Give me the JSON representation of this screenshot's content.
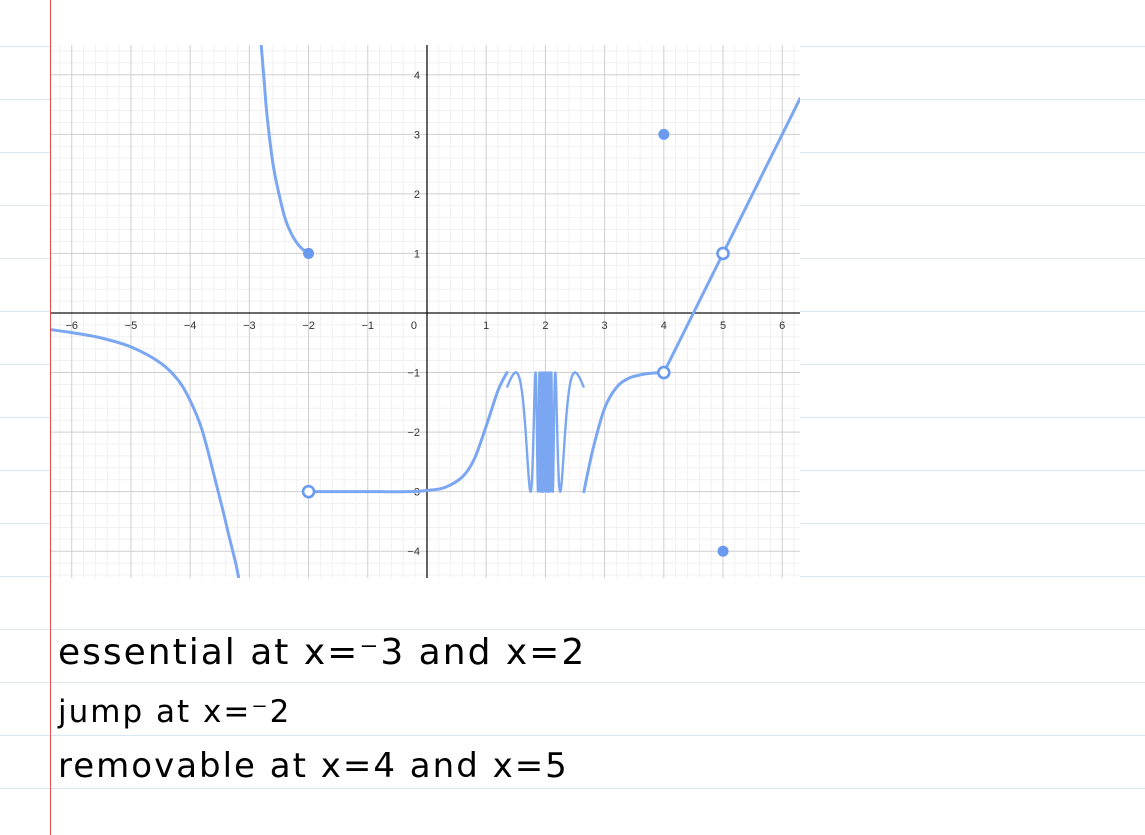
{
  "chart_data": {
    "type": "line",
    "title": "",
    "xlabel": "",
    "ylabel": "",
    "xlim": [
      -6.35,
      6.3
    ],
    "ylim": [
      -4.45,
      4.5
    ],
    "x_ticks": [
      -6,
      -5,
      -4,
      -3,
      -2,
      -1,
      1,
      2,
      3,
      4,
      5,
      6
    ],
    "y_ticks": [
      -4,
      -3,
      -2,
      -1,
      1,
      2,
      3,
      4
    ],
    "origin_label": "0",
    "grid": true,
    "line_color": "#7ba7f2",
    "point_color": "#6a99f0",
    "curves": [
      {
        "name": "",
        "x": [
          -6.35,
          -6,
          -5.5,
          -5,
          -4.5,
          -4.2,
          -4,
          -3.8,
          -3.6,
          -3.45,
          -3.35,
          -3.28,
          -3.22,
          -3.18
        ],
        "y": [
          -0.28,
          -0.33,
          -0.42,
          -0.57,
          -0.84,
          -1.13,
          -1.47,
          -1.96,
          -2.71,
          -3.3,
          -3.72,
          -4.0,
          -4.25,
          -4.45
        ]
      },
      {
        "name": "",
        "x": [
          -2.8,
          -2.75,
          -2.7,
          -2.6,
          -2.5,
          -2.4,
          -2.3,
          -2.2,
          -2.1,
          -2.0
        ],
        "y": [
          4.5,
          3.9,
          3.3,
          2.5,
          2.0,
          1.6,
          1.35,
          1.18,
          1.07,
          1.0
        ]
      },
      {
        "name": "",
        "x": [
          -2.0,
          -1.0,
          -0.3,
          0.0,
          0.3,
          0.6,
          0.8,
          1.0,
          1.2,
          1.35
        ],
        "y": [
          -3.0,
          -3.0,
          -3.0,
          -2.98,
          -2.93,
          -2.75,
          -2.45,
          -1.9,
          -1.3,
          -1.0
        ]
      },
      {
        "name": "",
        "x": [
          2.65,
          2.8,
          3.0,
          3.2,
          3.4,
          3.6,
          3.8,
          4.0
        ],
        "y": [
          -3.0,
          -2.3,
          -1.6,
          -1.25,
          -1.1,
          -1.04,
          -1.01,
          -1.0
        ]
      },
      {
        "name": "",
        "x": [
          4.0,
          5.0,
          6.3
        ],
        "y": [
          -1.0,
          1.0,
          3.6
        ]
      }
    ],
    "oscillation": {
      "x_start": 1.35,
      "x_end": 2.65,
      "center": 2.0,
      "y_min": -3.0,
      "y_max": -1.0
    },
    "open_points": [
      {
        "x": -2,
        "y": -3
      },
      {
        "x": 4,
        "y": -1
      },
      {
        "x": 5,
        "y": 1
      }
    ],
    "filled_points": [
      {
        "x": -2,
        "y": 1
      },
      {
        "x": 4,
        "y": 3
      },
      {
        "x": 5,
        "y": -4
      }
    ]
  },
  "notes": {
    "line1": "essential at x=⁻3 and x=2",
    "line2": "jump at x=⁻2",
    "line3": "removable at x=4 and x=5"
  }
}
